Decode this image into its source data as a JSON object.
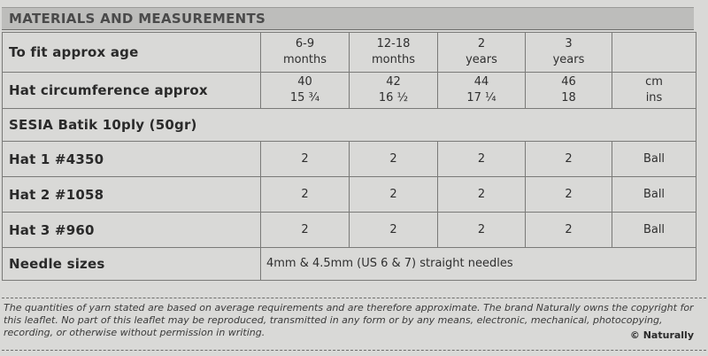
{
  "section": {
    "title": "MATERIALS AND MEASUREMENTS"
  },
  "rows": {
    "age": {
      "label": "To fit approx age",
      "cells": [
        {
          "l1": "6-9",
          "l2": "months"
        },
        {
          "l1": "12-18",
          "l2": "months"
        },
        {
          "l1": "2",
          "l2": "years"
        },
        {
          "l1": "3",
          "l2": "years"
        }
      ]
    },
    "circumference": {
      "label": "Hat circumference approx",
      "cells": [
        {
          "l1": "40",
          "l2": "15 ¾"
        },
        {
          "l1": "42",
          "l2": "16 ½"
        },
        {
          "l1": "44",
          "l2": "17 ¼"
        },
        {
          "l1": "46",
          "l2": "18"
        }
      ],
      "unit": {
        "l1": "cm",
        "l2": "ins"
      }
    },
    "yarn": {
      "label": "SESIA Batik 10ply (50gr)"
    },
    "hat1": {
      "label": "Hat 1  #4350",
      "values": [
        "2",
        "2",
        "2",
        "2"
      ],
      "unit": "Ball"
    },
    "hat2": {
      "label": "Hat 2  #1058",
      "values": [
        "2",
        "2",
        "2",
        "2"
      ],
      "unit": "Ball"
    },
    "hat3": {
      "label": "Hat 3  #960",
      "values": [
        "2",
        "2",
        "2",
        "2"
      ],
      "unit": "Ball"
    },
    "needles": {
      "label": "Needle sizes",
      "text": "4mm & 4.5mm (US 6 & 7) straight needles"
    }
  },
  "footer": {
    "disclaimer": "The quantities of yarn stated are based on average requirements and are therefore approximate. The brand Naturally owns the copyright for this leaflet. No part of this leaflet may be reproduced, transmitted in any form or by any means, electronic, mechanical, photocopying, recording, or otherwise without permission in writing.",
    "copyright": "© Naturally"
  }
}
